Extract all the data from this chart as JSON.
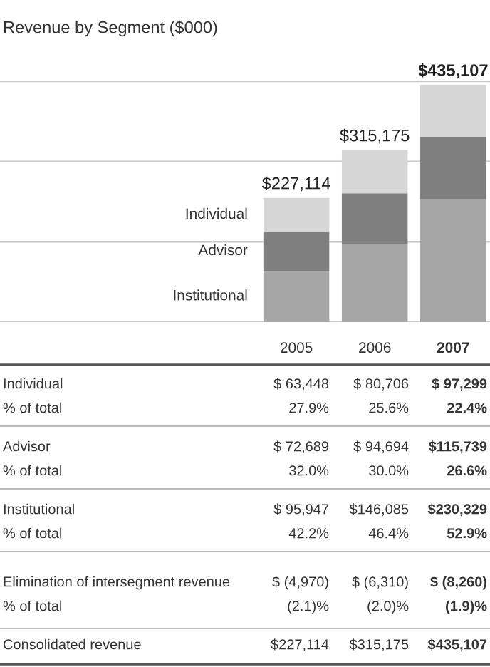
{
  "chart_data": {
    "type": "bar",
    "title": "Revenue by Segment ($000)",
    "stacked": true,
    "categories": [
      "2005",
      "2006",
      "2007"
    ],
    "series": [
      {
        "name": "Institutional",
        "color": "#a6a6a6",
        "values": [
          95947,
          146085,
          230329
        ],
        "value_labels": [
          "$ 95,947",
          "$146,085",
          "$230,329"
        ]
      },
      {
        "name": "Advisor",
        "color": "#7f7f7f",
        "values": [
          72689,
          94694,
          115739
        ],
        "value_labels": [
          "$ 72,689",
          "$ 94,694",
          "$115,739"
        ]
      },
      {
        "name": "Individual",
        "color": "#d6d6d6",
        "values": [
          63448,
          80706,
          97299
        ],
        "value_labels": [
          "$ 63,448",
          "$ 80,706",
          "$ 97,299"
        ]
      }
    ],
    "ylim": [
      0,
      450000
    ],
    "yticks": [
      {
        "value": 0,
        "label": null
      },
      {
        "value": 150000,
        "label": null
      },
      {
        "value": 300000,
        "label": null
      },
      {
        "value": 450000,
        "label": null
      }
    ],
    "tick_labels": "x",
    "grid": "y",
    "legend": false,
    "annotations": [
      "% of total",
      "27.9%",
      "25.6%",
      "22.4%",
      "% of total",
      "32.0%",
      "30.0%",
      "26.6%",
      "% of total",
      "42.2%",
      "46.4%",
      "52.9%",
      "Elimination of intersegment revenue",
      "$ (4,970)",
      "$ (6,310)",
      "$ (8,260)",
      "% of total",
      "(2.1)%",
      "(2.0)%",
      "(1.9)%",
      "Consolidated revenue",
      "$227,114",
      "$315,175",
      "$435,107",
      {
        "text": "$227,114",
        "x": "2005",
        "y": 232084
      },
      {
        "text": "$315,175",
        "x": "2006",
        "y": 321485
      },
      {
        "text": "$435,107",
        "x": "2007",
        "y": 443367
      }
    ]
  }
}
